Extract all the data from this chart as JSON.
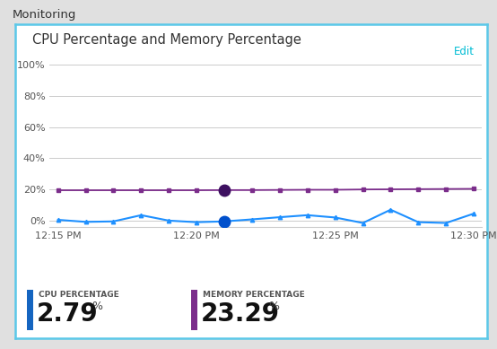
{
  "title": "CPU Percentage and Memory Percentage",
  "outer_title": "Monitoring",
  "edit_label": "Edit",
  "x_ticks_labels": [
    "12:15 PM",
    "12:20 PM",
    "12:25 PM",
    "12:30 PM"
  ],
  "x_ticks_positions": [
    0,
    5,
    10,
    15
  ],
  "y_ticks": [
    0,
    20,
    40,
    60,
    80,
    100
  ],
  "y_tick_labels": [
    "0%",
    "20%",
    "40%",
    "60%",
    "80%",
    "100%"
  ],
  "ylim": [
    -4,
    108
  ],
  "xlim": [
    -0.3,
    15.3
  ],
  "cpu_x": [
    0,
    1,
    2,
    3,
    4,
    5,
    6,
    7,
    8,
    9,
    10,
    11,
    12,
    13,
    14,
    15
  ],
  "cpu_y": [
    0.5,
    -0.8,
    -0.5,
    3.5,
    0.0,
    -1.0,
    -0.5,
    0.8,
    2.2,
    3.5,
    2.0,
    -1.5,
    7.0,
    -1.0,
    -1.5,
    4.5
  ],
  "mem_x": [
    0,
    1,
    2,
    3,
    4,
    5,
    6,
    7,
    8,
    9,
    10,
    11,
    12,
    13,
    14,
    15
  ],
  "mem_y": [
    19.5,
    19.5,
    19.5,
    19.5,
    19.5,
    19.5,
    19.6,
    19.6,
    19.7,
    19.8,
    19.8,
    20.0,
    20.1,
    20.2,
    20.3,
    20.4
  ],
  "highlight_x_idx": 6,
  "cpu_color": "#1e90ff",
  "mem_color": "#7b2d8b",
  "cpu_highlight_color": "#0050cc",
  "mem_highlight_color": "#3d1060",
  "background_color": "#ffffff",
  "outer_bg": "#e0e0e0",
  "border_color": "#5bc8e8",
  "grid_color": "#cccccc",
  "title_color": "#333333",
  "outer_title_color": "#333333",
  "edit_color": "#00bcd4",
  "tick_label_color": "#555555",
  "cpu_label": "CPU PERCENTAGE",
  "mem_label": "MEMORY PERCENTAGE",
  "cpu_value": "2.79",
  "mem_value": "23.29",
  "cpu_bar_color": "#1565c0",
  "mem_bar_color": "#7b2d8b",
  "value_color": "#111111",
  "unit_color": "#444444"
}
